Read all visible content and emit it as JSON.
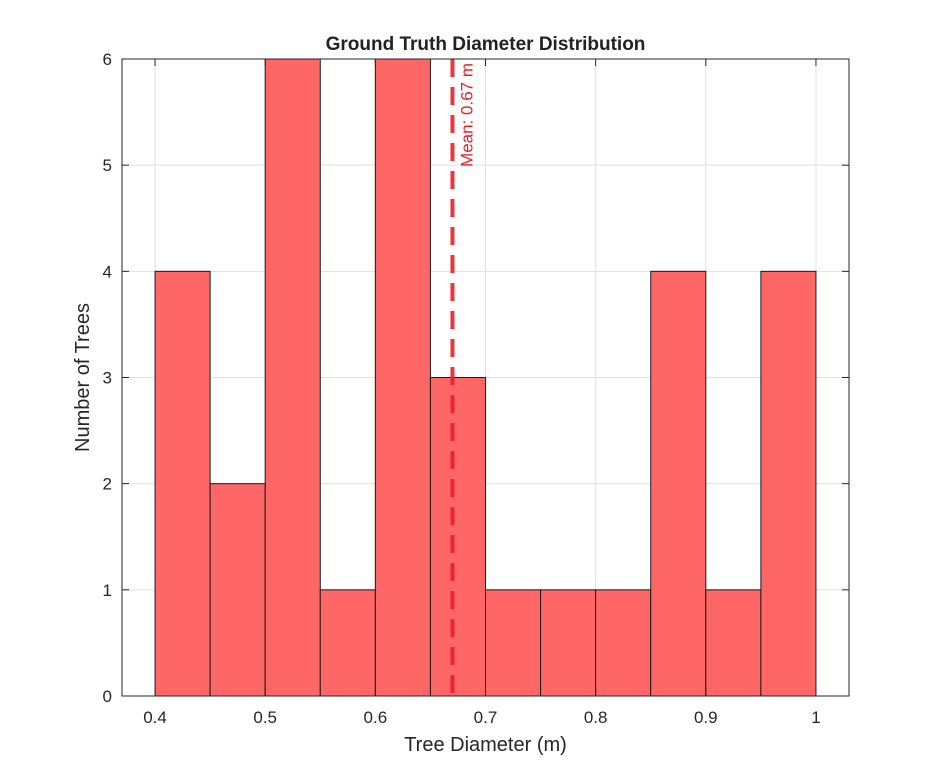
{
  "chart_data": {
    "type": "bar",
    "title": "Ground Truth Diameter Distribution",
    "xlabel": "Tree Diameter (m)",
    "ylabel": "Number of Trees",
    "bin_edges": [
      0.4,
      0.45,
      0.5,
      0.55,
      0.6,
      0.65,
      0.7,
      0.75,
      0.8,
      0.85,
      0.9,
      0.95,
      1.0
    ],
    "values": [
      4,
      2,
      6,
      1,
      6,
      3,
      1,
      1,
      1,
      4,
      1,
      4
    ],
    "xlim": [
      0.37,
      1.03
    ],
    "ylim": [
      0,
      6
    ],
    "xticks": [
      0.4,
      0.5,
      0.6,
      0.7,
      0.8,
      0.9,
      1.0
    ],
    "xtick_labels": [
      "0.4",
      "0.5",
      "0.6",
      "0.7",
      "0.8",
      "0.9",
      "1"
    ],
    "yticks": [
      0,
      1,
      2,
      3,
      4,
      5,
      6
    ],
    "ytick_labels": [
      "0",
      "1",
      "2",
      "3",
      "4",
      "5",
      "6"
    ],
    "grid": true,
    "bar_color": "#ff6666",
    "mean_line": {
      "x": 0.67,
      "label": "Mean: 0.67 m",
      "color": "#e8202a"
    }
  }
}
